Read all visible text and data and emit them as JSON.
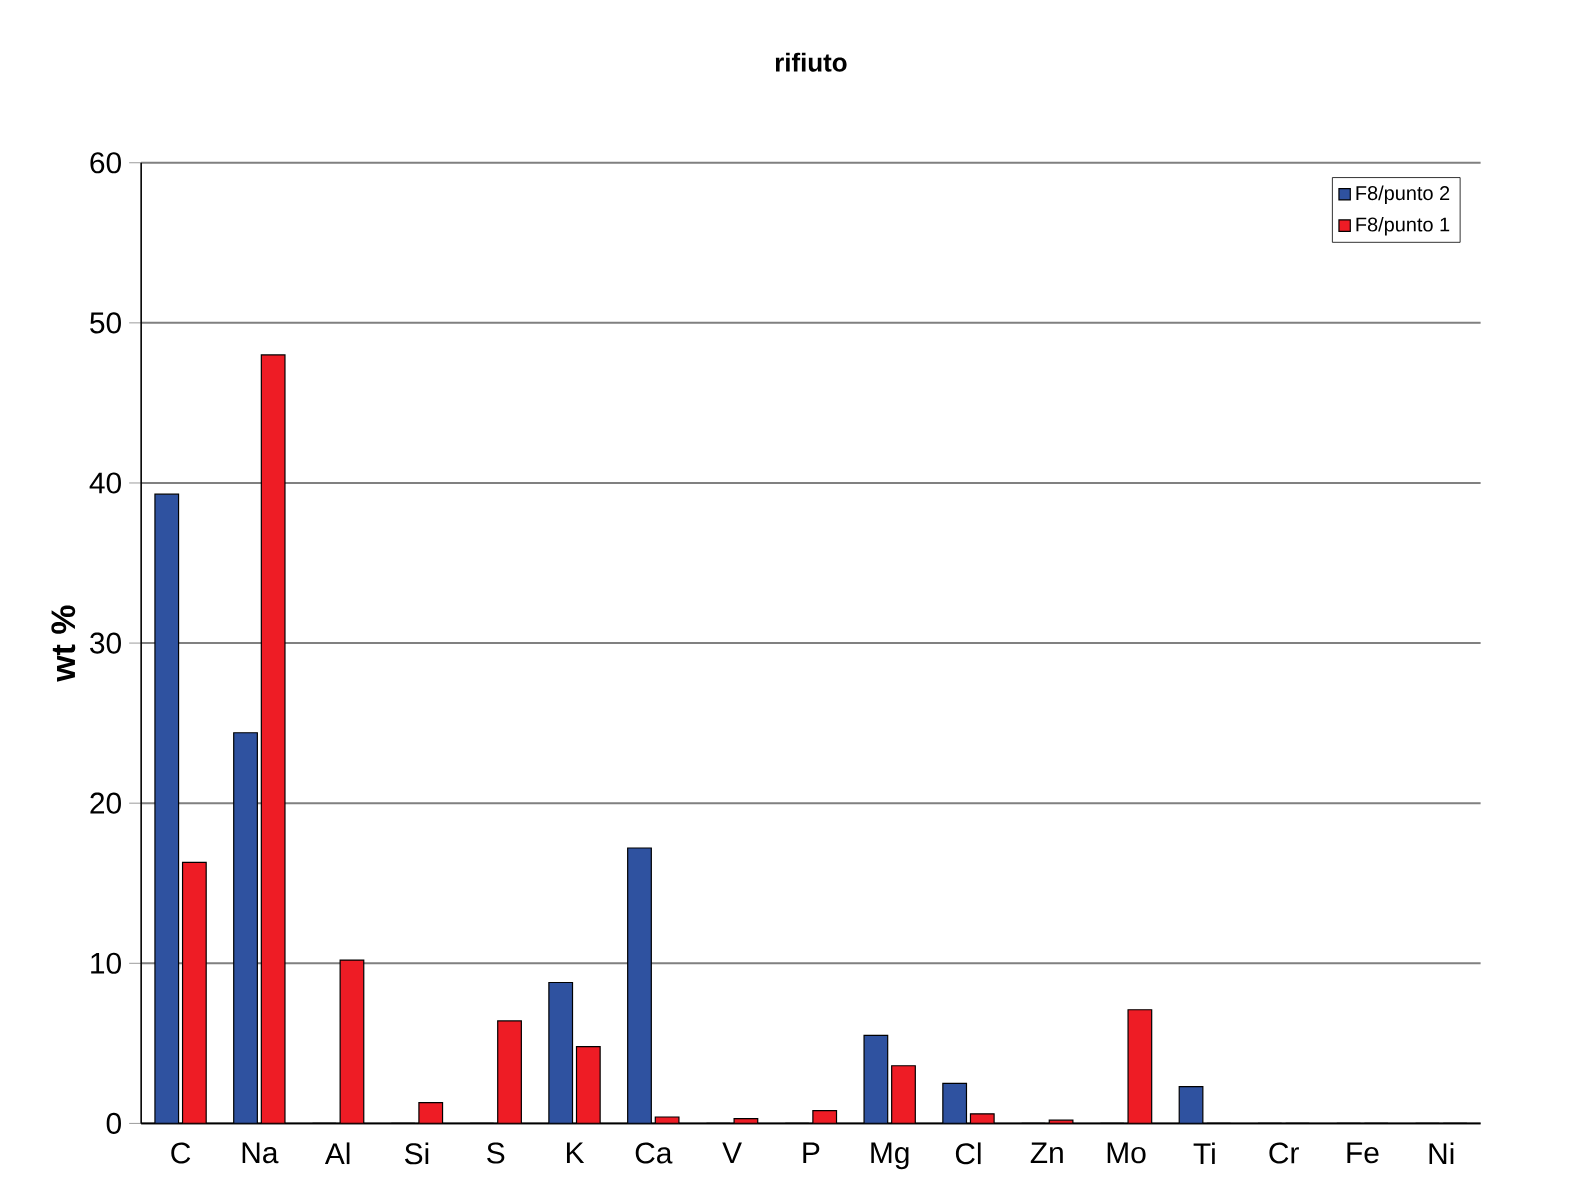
{
  "chart_data": {
    "type": "bar",
    "title": "rifiuto",
    "ylabel": "wt %",
    "categories": [
      "C",
      "Na",
      "Al",
      "Si",
      "S",
      "K",
      "Ca",
      "V",
      "P",
      "Mg",
      "Cl",
      "Zn",
      "Mo",
      "Ti",
      "Cr",
      "Fe",
      "Ni"
    ],
    "series": [
      {
        "name": "F8/punto 2",
        "color": "#2f52a0",
        "values": [
          39.3,
          24.4,
          0,
          0,
          0,
          8.8,
          17.2,
          0,
          0,
          5.5,
          2.5,
          0,
          0,
          2.3,
          0,
          0,
          0
        ]
      },
      {
        "name": "F8/punto 1",
        "color": "#ee1c25",
        "values": [
          16.3,
          48,
          10.2,
          1.3,
          6.4,
          4.8,
          0.4,
          0.3,
          0.8,
          3.6,
          0.6,
          0.2,
          7.1,
          0,
          0,
          0,
          0
        ]
      }
    ],
    "ylim": [
      0,
      60
    ],
    "yticks": [
      0,
      10,
      20,
      30,
      40,
      50,
      60
    ],
    "grid": "y",
    "legend": "top right"
  }
}
